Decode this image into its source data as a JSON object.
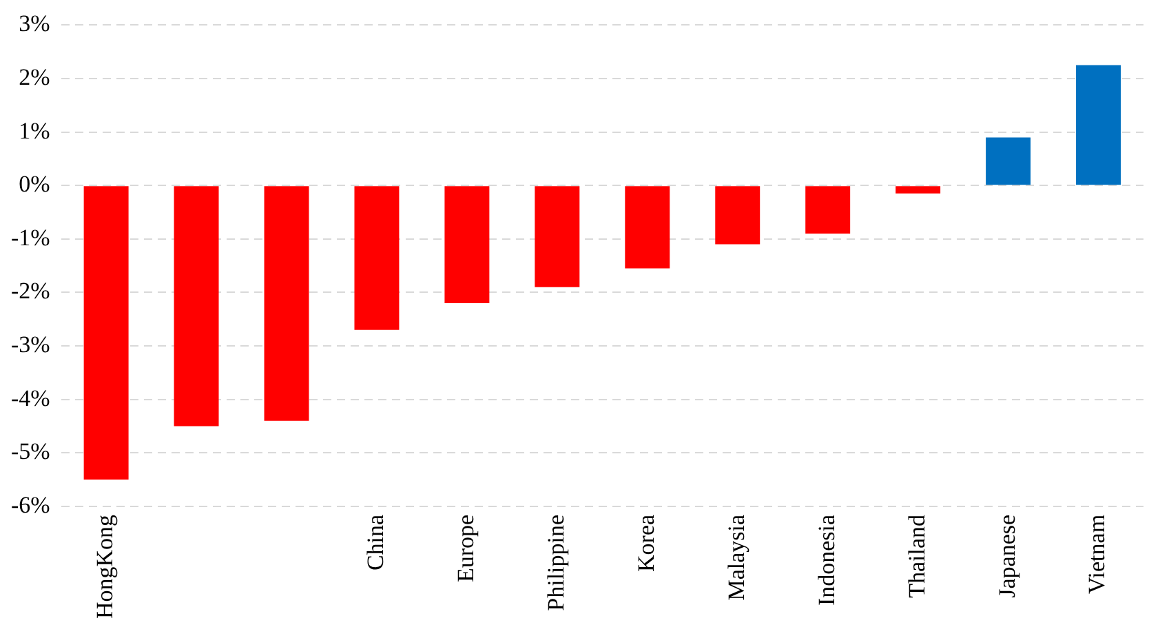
{
  "chart_data": {
    "type": "bar",
    "categories": [
      "HongKong",
      null,
      null,
      "China",
      "Europe",
      "Philippine",
      "Korea",
      "Malaysia",
      "Indonesia",
      "Thailand",
      "Japanese",
      "Vietnam"
    ],
    "values": [
      -5.5,
      -4.5,
      -4.4,
      -2.7,
      -2.2,
      -1.9,
      -1.55,
      -1.1,
      -0.9,
      -0.15,
      0.9,
      2.25
    ],
    "colors": [
      "#ff0000",
      "#ff0000",
      "#ff0000",
      "#ff0000",
      "#ff0000",
      "#ff0000",
      "#ff0000",
      "#ff0000",
      "#ff0000",
      "#ff0000",
      "#0070c0",
      "#0070c0"
    ],
    "ylim": [
      -6,
      3
    ],
    "yticks": [
      {
        "value": -6,
        "label": "-6%"
      },
      {
        "value": -5,
        "label": "-5%"
      },
      {
        "value": -4,
        "label": "-4%"
      },
      {
        "value": -3,
        "label": "-3%"
      },
      {
        "value": -2,
        "label": "-2%"
      },
      {
        "value": -1,
        "label": "-1%"
      },
      {
        "value": 0,
        "label": "0%"
      },
      {
        "value": 1,
        "label": "1%"
      },
      {
        "value": 2,
        "label": "2%"
      },
      {
        "value": 3,
        "label": "3%"
      }
    ],
    "grid": "y",
    "legend": false
  }
}
